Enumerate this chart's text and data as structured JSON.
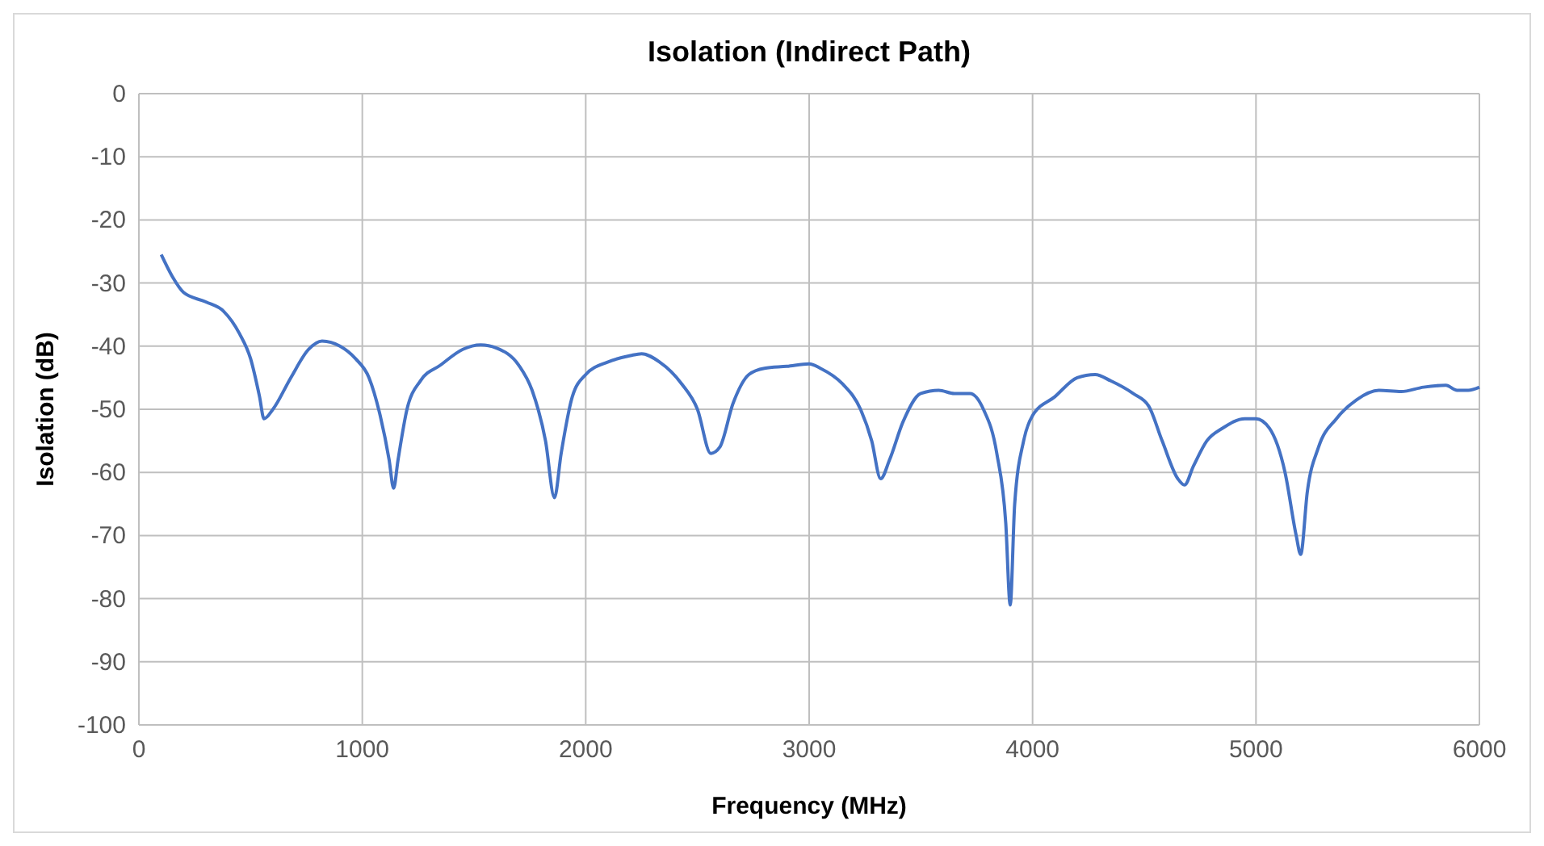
{
  "chart_data": {
    "type": "line",
    "title": "Isolation (Indirect Path)",
    "xlabel": "Frequency (MHz)",
    "ylabel": "Isolation (dB)",
    "xlim": [
      0,
      6000
    ],
    "xticks": [
      0,
      1000,
      2000,
      3000,
      4000,
      5000,
      6000
    ],
    "ylim": [
      -100,
      0
    ],
    "yticks": [
      -100,
      -90,
      -80,
      -70,
      -60,
      -50,
      -40,
      -30,
      -20,
      -10,
      0
    ],
    "grid": true,
    "marker": "none",
    "line_style": "solid",
    "series": [
      {
        "color": "#4472c4",
        "x": [
          100,
          150,
          200,
          300,
          380,
          450,
          500,
          540,
          560,
          600,
          680,
          760,
          820,
          900,
          970,
          1030,
          1080,
          1120,
          1140,
          1160,
          1200,
          1260,
          1350,
          1450,
          1530,
          1600,
          1700,
          1760,
          1820,
          1860,
          1890,
          1940,
          2000,
          2100,
          2200,
          2250,
          2330,
          2430,
          2500,
          2560,
          2600,
          2660,
          2730,
          2800,
          2900,
          3000,
          3050,
          3150,
          3230,
          3280,
          3320,
          3360,
          3420,
          3500,
          3580,
          3650,
          3720,
          3780,
          3840,
          3880,
          3900,
          3920,
          3960,
          4000,
          4100,
          4200,
          4280,
          4350,
          4450,
          4520,
          4580,
          4650,
          4680,
          4720,
          4780,
          4850,
          4950,
          5000,
          5060,
          5130,
          5180,
          5200,
          5230,
          5280,
          5360,
          5450,
          5550,
          5650,
          5750,
          5850,
          5900,
          5950,
          6000
        ],
        "values": [
          -25.5,
          -29,
          -31.5,
          -33,
          -34.5,
          -38,
          -42,
          -48,
          -51.5,
          -50,
          -45,
          -40.5,
          -39.2,
          -40,
          -42,
          -45,
          -51,
          -58,
          -62.5,
          -58,
          -50,
          -45.5,
          -43,
          -40.5,
          -39.8,
          -40.3,
          -43,
          -47,
          -55,
          -64,
          -57,
          -48,
          -44.5,
          -42.5,
          -41.5,
          -41.2,
          -42.5,
          -46,
          -50,
          -57,
          -56,
          -49,
          -44.5,
          -43.5,
          -43.2,
          -42.8,
          -43.5,
          -46,
          -50,
          -55,
          -61,
          -58,
          -52,
          -47.5,
          -47,
          -47.5,
          -47.5,
          -50,
          -57,
          -68,
          -81,
          -65,
          -55,
          -51,
          -48,
          -45,
          -44.5,
          -45.5,
          -47.5,
          -49.5,
          -55,
          -61,
          -62,
          -59,
          -55,
          -53,
          -51.5,
          -51.5,
          -53,
          -60,
          -70,
          -73,
          -63,
          -56,
          -51.5,
          -48.5,
          -47,
          -47.2,
          -46.5,
          -46.2,
          -47,
          -47,
          -46.5
        ]
      }
    ]
  }
}
